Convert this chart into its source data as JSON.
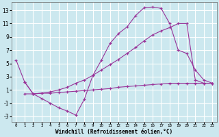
{
  "bg_color": "#cce8ef",
  "grid_color": "#ffffff",
  "line_color": "#993399",
  "xlabel": "Windchill (Refroidissement éolien,°C)",
  "xlim": [
    -0.5,
    23.5
  ],
  "ylim": [
    -3.8,
    14.2
  ],
  "xticks": [
    0,
    1,
    2,
    3,
    4,
    5,
    6,
    7,
    8,
    9,
    10,
    11,
    12,
    13,
    14,
    15,
    16,
    17,
    18,
    19,
    20,
    21,
    22,
    23
  ],
  "yticks": [
    -3,
    -1,
    1,
    3,
    5,
    7,
    9,
    11,
    13
  ],
  "curve1_x": [
    0,
    1,
    2,
    3,
    4,
    5,
    6,
    7,
    8,
    9,
    10,
    11,
    12,
    13,
    14,
    15,
    16,
    17,
    18,
    19,
    20,
    21,
    22,
    23
  ],
  "curve1_y": [
    5.5,
    2.2,
    0.4,
    -0.3,
    -1.0,
    -1.7,
    -2.2,
    -2.8,
    -0.4,
    3.2,
    5.5,
    8.0,
    9.5,
    10.5,
    12.2,
    13.4,
    13.5,
    13.3,
    11.0,
    7.0,
    6.5,
    4.0,
    2.5,
    2.0
  ],
  "curve2_x": [
    1,
    2,
    3,
    4,
    5,
    6,
    7,
    8,
    9,
    10,
    11,
    12,
    13,
    14,
    15,
    16,
    17,
    18,
    19,
    20,
    21,
    22,
    23
  ],
  "curve2_y": [
    2.2,
    0.4,
    0.5,
    0.7,
    1.0,
    1.4,
    2.0,
    2.5,
    3.2,
    4.0,
    4.8,
    5.6,
    6.5,
    7.4,
    8.4,
    9.3,
    9.9,
    10.4,
    11.0,
    11.0,
    2.5,
    2.0,
    2.0
  ],
  "curve3_x": [
    1,
    2,
    3,
    4,
    5,
    6,
    7,
    8,
    9,
    10,
    11,
    12,
    13,
    14,
    15,
    16,
    17,
    18,
    19,
    20,
    21,
    22,
    23
  ],
  "curve3_y": [
    0.4,
    0.4,
    0.5,
    0.5,
    0.6,
    0.7,
    0.8,
    0.9,
    1.0,
    1.1,
    1.2,
    1.4,
    1.5,
    1.6,
    1.7,
    1.8,
    1.9,
    2.0,
    2.0,
    2.0,
    2.0,
    2.0,
    2.0
  ]
}
